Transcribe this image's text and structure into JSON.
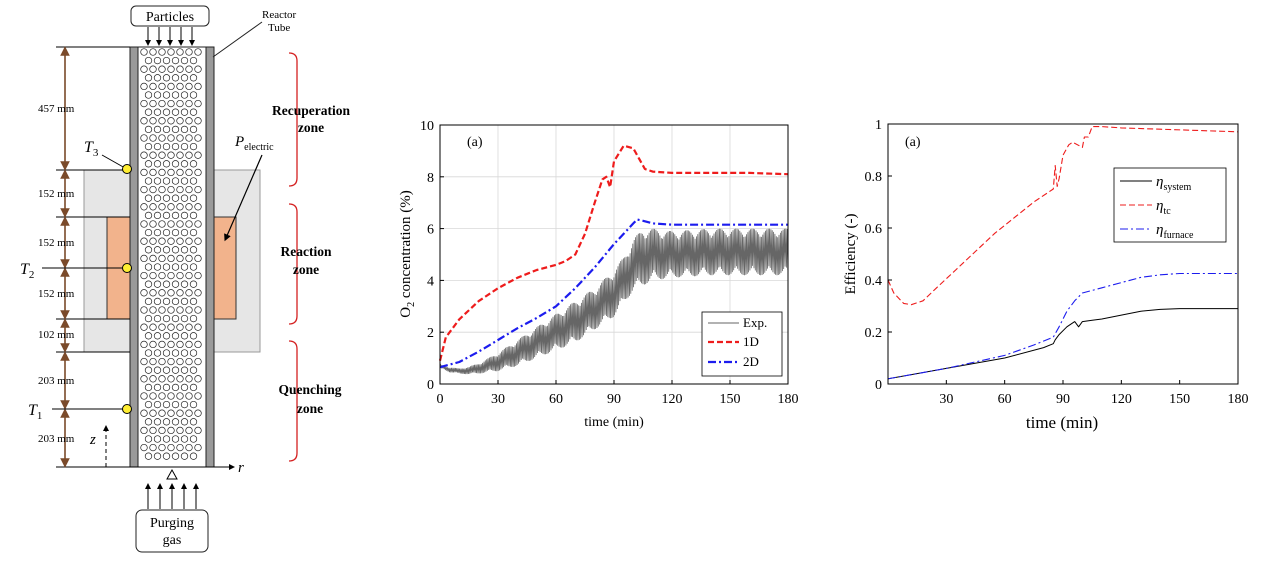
{
  "schematic": {
    "top_box": "Particles",
    "reactor_label": [
      "Reactor",
      "Tube"
    ],
    "power_label": "P",
    "power_sub": "electric",
    "zones": [
      [
        "Recuperation",
        "zone"
      ],
      [
        "Reaction",
        "zone"
      ],
      [
        "Quenching",
        "zone"
      ]
    ],
    "dimensions": [
      "457 mm",
      "152 mm",
      "152 mm",
      "152 mm",
      "102 mm",
      "203 mm",
      "203 mm"
    ],
    "thermocouples": [
      {
        "label": "T",
        "sub": "3"
      },
      {
        "label": "T",
        "sub": "2"
      },
      {
        "label": "T",
        "sub": "1"
      }
    ],
    "axis_z": "z",
    "axis_r": "r",
    "bottom_box": [
      "Purging",
      "gas"
    ],
    "colors": {
      "furnace": "#e6e6e6",
      "heater": "#f2b38c",
      "tube_wall": "#9a9a9a",
      "bracket": "#d42020",
      "arrow": "#7a4a2a",
      "thermocouple": "#ffee33"
    }
  },
  "chart_data": [
    {
      "type": "line",
      "panel_label": "(a)",
      "xlabel": "time (min)",
      "ylabel_main": "O",
      "ylabel_sub": "2",
      "ylabel_rest": " concentration (%)",
      "xlim": [
        0,
        180
      ],
      "ylim": [
        0,
        10
      ],
      "xticks": [
        0,
        30,
        60,
        90,
        120,
        150,
        180
      ],
      "yticks": [
        0,
        2,
        4,
        6,
        8,
        10
      ],
      "grid": true,
      "legend_position": "bottom-right",
      "series": [
        {
          "name": "Exp.",
          "style": "solid",
          "color": "#666666",
          "x": [
            0,
            5,
            10,
            15,
            20,
            30,
            40,
            50,
            60,
            70,
            80,
            90,
            95,
            100,
            105,
            110,
            120,
            130,
            140,
            150,
            160,
            170,
            180
          ],
          "y": [
            0.7,
            0.55,
            0.5,
            0.52,
            0.6,
            0.85,
            1.2,
            1.6,
            2.0,
            2.4,
            2.9,
            3.5,
            4.0,
            4.6,
            4.9,
            5.0,
            5.0,
            5.05,
            5.1,
            5.1,
            5.1,
            5.1,
            5.1
          ],
          "band": [
            0.05,
            0.1,
            0.1,
            0.15,
            0.2,
            0.35,
            0.5,
            0.6,
            0.7,
            0.8,
            0.8,
            0.9,
            0.9,
            1.0,
            1.1,
            1.0,
            0.9,
            0.9,
            0.9,
            0.9,
            0.9,
            0.9,
            0.9
          ]
        },
        {
          "name": "1D",
          "style": "dash",
          "color": "#ee1c1c",
          "x": [
            0,
            3,
            10,
            20,
            30,
            40,
            50,
            60,
            65,
            70,
            75,
            80,
            84,
            86,
            88,
            90,
            95,
            100,
            103,
            106,
            110,
            120,
            140,
            160,
            180
          ],
          "y": [
            0.9,
            1.8,
            2.5,
            3.2,
            3.7,
            4.1,
            4.4,
            4.6,
            4.75,
            5.0,
            5.8,
            7.0,
            7.9,
            8.0,
            7.6,
            8.6,
            9.2,
            9.1,
            8.7,
            8.3,
            8.2,
            8.15,
            8.15,
            8.15,
            8.1
          ]
        },
        {
          "name": "2D",
          "style": "dashdot",
          "color": "#1c1cee",
          "x": [
            0,
            10,
            20,
            30,
            40,
            50,
            60,
            70,
            80,
            90,
            95,
            100,
            102,
            105,
            110,
            120,
            140,
            160,
            180
          ],
          "y": [
            0.65,
            0.85,
            1.25,
            1.7,
            2.15,
            2.55,
            3.0,
            3.7,
            4.5,
            5.4,
            5.8,
            6.2,
            6.35,
            6.3,
            6.2,
            6.15,
            6.15,
            6.15,
            6.15
          ]
        }
      ]
    },
    {
      "type": "line",
      "panel_label": "(a)",
      "xlabel": "time (min)",
      "ylabel": "Efficiency (-)",
      "xlim": [
        0,
        180
      ],
      "ylim": [
        0,
        1
      ],
      "xticks": [
        30,
        60,
        90,
        120,
        150,
        180
      ],
      "yticks": [
        0,
        0.2,
        0.4,
        0.6,
        0.8,
        1
      ],
      "grid": false,
      "legend_position": "upper-right",
      "series": [
        {
          "name": "η",
          "sub": "system",
          "style": "solid",
          "color": "#000000",
          "x": [
            0,
            30,
            60,
            80,
            85,
            86,
            88,
            92,
            96,
            98,
            100,
            105,
            110,
            120,
            130,
            140,
            150,
            160,
            180
          ],
          "y": [
            0.02,
            0.06,
            0.1,
            0.14,
            0.155,
            0.17,
            0.19,
            0.22,
            0.24,
            0.22,
            0.24,
            0.245,
            0.25,
            0.265,
            0.28,
            0.287,
            0.29,
            0.29,
            0.29
          ]
        },
        {
          "name": "η",
          "sub": "tc",
          "style": "dash",
          "color": "#ee1c1c",
          "x": [
            0,
            3,
            8,
            12,
            18,
            25,
            35,
            45,
            55,
            65,
            75,
            85,
            86,
            87,
            88,
            90,
            93,
            95,
            100,
            101,
            103,
            105,
            110,
            120,
            140,
            160,
            180
          ],
          "y": [
            0.4,
            0.35,
            0.31,
            0.305,
            0.32,
            0.37,
            0.44,
            0.51,
            0.58,
            0.64,
            0.7,
            0.75,
            0.84,
            0.76,
            0.79,
            0.88,
            0.92,
            0.93,
            0.91,
            0.95,
            0.95,
            0.99,
            0.99,
            0.985,
            0.98,
            0.975,
            0.97
          ]
        },
        {
          "name": "η",
          "sub": "furnace",
          "style": "dashdot",
          "color": "#1c1cee",
          "x": [
            0,
            30,
            60,
            75,
            85,
            88,
            92,
            96,
            100,
            105,
            110,
            120,
            130,
            140,
            150,
            160,
            180
          ],
          "y": [
            0.02,
            0.06,
            0.11,
            0.15,
            0.18,
            0.22,
            0.28,
            0.32,
            0.35,
            0.36,
            0.37,
            0.39,
            0.41,
            0.42,
            0.425,
            0.425,
            0.425
          ]
        }
      ]
    }
  ]
}
